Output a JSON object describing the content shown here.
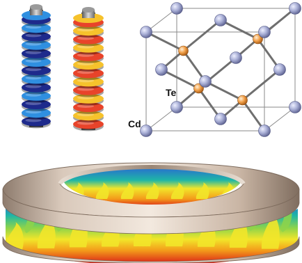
{
  "crystal": {
    "labels": {
      "tellurium": "Te",
      "cadmium": "Cd"
    },
    "colors": {
      "cd_atom": "#a9afd6",
      "te_atom": "#f2a14a",
      "frame": "#8a8a8a",
      "bond": "#6f6f6f"
    }
  },
  "coils": {
    "left": {
      "colors": [
        "#1e2a8c",
        "#2f8fe0"
      ]
    },
    "right": {
      "colors": [
        "#e8432a",
        "#f6c22c"
      ]
    }
  },
  "ring": {
    "colormap": [
      "#d81818",
      "#f39a1a",
      "#f2e62a",
      "#8ed44a",
      "#1fb6a6",
      "#2a63d6"
    ],
    "rim_color": "#b79e8a"
  }
}
